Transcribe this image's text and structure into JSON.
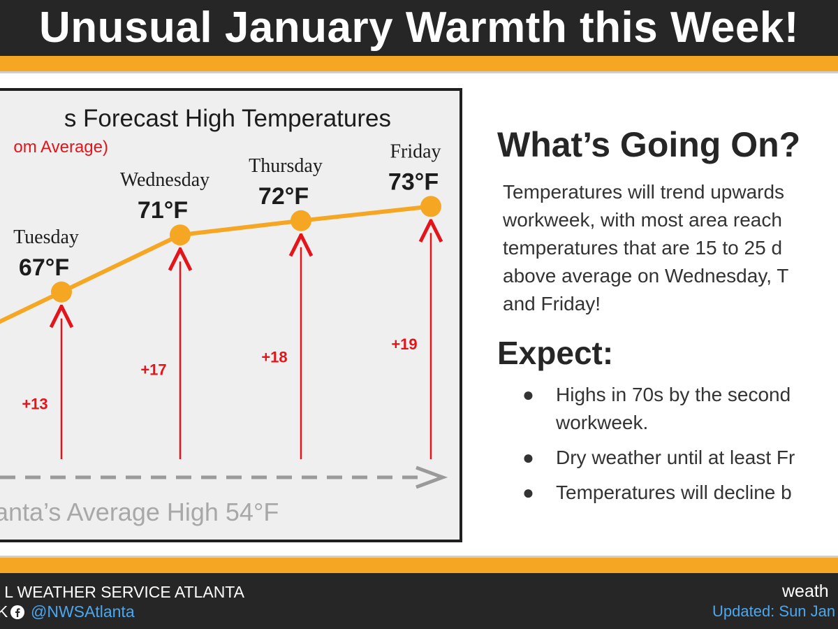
{
  "header": {
    "title": "Unusual January Warmth this Week!"
  },
  "colors": {
    "orange": "#f5a623",
    "dark": "#262626",
    "red": "#e4141b",
    "gray_line": "#9a9a9a",
    "blue_link": "#4aa8f0"
  },
  "chart_data": {
    "type": "line",
    "title": "s Forecast High Temperatures",
    "subtitle": "om Average)",
    "categories": [
      "Tuesday",
      "Wednesday",
      "Thursday",
      "Friday"
    ],
    "values": [
      67,
      71,
      72,
      73
    ],
    "value_labels": [
      "67°F",
      "71°F",
      "72°F",
      "73°F"
    ],
    "departures": [
      "+13",
      "+17",
      "+18",
      "+19"
    ],
    "average_high": 54,
    "average_label": "anta’s Average High 54°F",
    "ylim": [
      54,
      73
    ],
    "grid": false,
    "legend": "none"
  },
  "info": {
    "heading": "What’s Going On?",
    "body_lines": [
      "Temperatures will trend upwards",
      "workweek, with most area reach",
      "temperatures that are 15 to 25 d",
      "above average on Wednesday, T",
      "and Friday!"
    ],
    "expect_heading": "Expect:",
    "bullets": [
      {
        "lines": [
          "Highs in 70s by the second",
          "workweek."
        ]
      },
      {
        "lines": [
          "Dry weather until at least Fr"
        ]
      },
      {
        "lines": [
          "Temperatures will decline b"
        ]
      }
    ],
    "bullet_char": "●"
  },
  "footer": {
    "org": "L WEATHER SERVICE ATLANTA",
    "social_fragment": "K",
    "facebook_icon": "facebook-icon",
    "handle": "@NWSAtlanta",
    "site_fragment": "weath",
    "updated_fragment": "Updated: Sun Jan"
  }
}
